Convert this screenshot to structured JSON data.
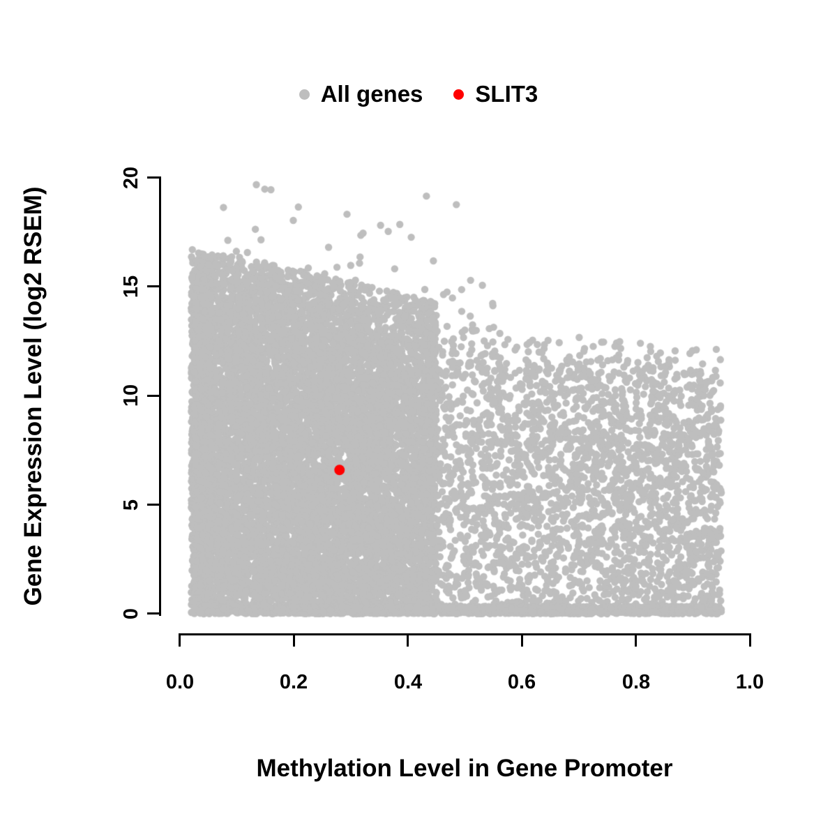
{
  "chart_data": {
    "type": "scatter",
    "title": "",
    "xlabel": "Methylation Level in Gene Promoter",
    "ylabel": "Gene Expression Level (log2 RSEM)",
    "xlim": [
      0.0,
      1.0
    ],
    "ylim": [
      0,
      20
    ],
    "grid": false,
    "legend_position": "top-center",
    "x_ticks": [
      "0.0",
      "0.2",
      "0.4",
      "0.6",
      "0.8",
      "1.0"
    ],
    "x_tick_values": [
      0.0,
      0.2,
      0.4,
      0.6,
      0.8,
      1.0
    ],
    "y_ticks": [
      "0",
      "5",
      "10",
      "15",
      "20"
    ],
    "y_tick_values": [
      0,
      5,
      10,
      15,
      20
    ],
    "legend": [
      {
        "label": "All genes",
        "color": "#bebebe"
      },
      {
        "label": "SLIT3",
        "color": "#ff0000"
      }
    ],
    "highlight_point": {
      "name": "SLIT3",
      "x": 0.28,
      "y": 6.6,
      "color": "#ff0000"
    },
    "series": [
      {
        "name": "All genes",
        "color": "#bebebe",
        "points": "procedural-cloud",
        "description": "Dense cloud of thousands of genes: methylation mostly 0.02-0.45 with expression spanning 0-15.5 (upper envelope declining with methylation); sparser spread from 0.45 to 0.95 with expression mostly 0-12; dense band along y=0 across the whole range; scattered high-expression outliers up to ~19.8 between methylation 0.05 and 0.55.",
        "generation": {
          "seed": 7,
          "n_dense": 9000,
          "n_left_band": 800,
          "n_bottom_band": 1300,
          "n_right": 2600,
          "n_halo": 600,
          "n_outliers": 70,
          "dense_x": [
            0.02,
            0.45
          ],
          "right_x": [
            0.45,
            0.95
          ],
          "dense_top_at_0": 15.4,
          "dense_top_slope": -6.0,
          "right_top_at_0": 13.5,
          "right_top_slope": -2.5,
          "outlier_x": [
            0.05,
            0.55
          ],
          "y_max": 19.8
        }
      }
    ]
  }
}
